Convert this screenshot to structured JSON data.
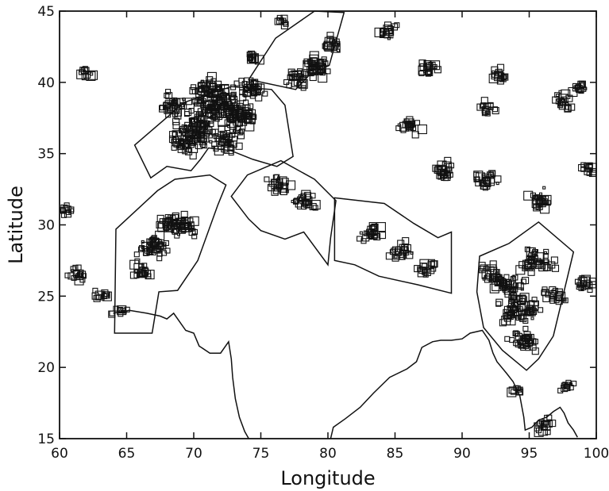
{
  "figure": {
    "xlabel": "Longitude",
    "ylabel": "Latitude",
    "xlim": [
      60,
      100
    ],
    "ylim": [
      15,
      45
    ],
    "x_ticks": [
      "60",
      "65",
      "70",
      "75",
      "80",
      "85",
      "90",
      "95",
      "100"
    ],
    "y_ticks": [
      "15",
      "20",
      "25",
      "30",
      "35",
      "40",
      "45"
    ],
    "ink_color": "#111111"
  },
  "map_data": {
    "coastline": [
      [
        [
          64.0,
          23.8
        ],
        [
          65.2,
          24.0
        ],
        [
          66.5,
          23.8
        ],
        [
          67.5,
          23.6
        ],
        [
          68.0,
          23.4
        ],
        [
          68.5,
          23.8
        ],
        [
          69.4,
          22.6
        ],
        [
          70.0,
          22.4
        ],
        [
          70.4,
          21.5
        ],
        [
          71.2,
          21.0
        ],
        [
          72.0,
          21.0
        ],
        [
          72.6,
          21.8
        ],
        [
          72.8,
          20.6
        ],
        [
          72.9,
          19.3
        ],
        [
          73.1,
          17.8
        ],
        [
          73.4,
          16.5
        ],
        [
          73.8,
          15.5
        ],
        [
          74.1,
          15.0
        ]
      ],
      [
        [
          80.2,
          15.0
        ],
        [
          80.4,
          15.8
        ],
        [
          81.3,
          16.4
        ],
        [
          82.4,
          17.2
        ],
        [
          83.4,
          18.2
        ],
        [
          84.6,
          19.3
        ],
        [
          85.9,
          19.9
        ],
        [
          86.6,
          20.4
        ],
        [
          87.0,
          21.4
        ],
        [
          87.8,
          21.8
        ],
        [
          88.4,
          21.9
        ],
        [
          89.2,
          21.9
        ],
        [
          90.0,
          22.0
        ],
        [
          90.6,
          22.4
        ],
        [
          91.5,
          22.6
        ],
        [
          92.0,
          21.9
        ],
        [
          92.3,
          21.0
        ],
        [
          92.6,
          20.4
        ],
        [
          93.3,
          19.6
        ],
        [
          93.8,
          19.0
        ],
        [
          94.3,
          18.0
        ],
        [
          94.6,
          16.5
        ],
        [
          94.7,
          15.6
        ],
        [
          95.2,
          15.8
        ],
        [
          95.7,
          16.3
        ],
        [
          96.3,
          16.5
        ],
        [
          96.8,
          16.9
        ],
        [
          97.3,
          17.2
        ],
        [
          97.6,
          16.8
        ],
        [
          97.9,
          16.1
        ],
        [
          98.3,
          15.6
        ],
        [
          98.6,
          15.1
        ]
      ]
    ],
    "zones": [
      [
        [
          64.2,
          29.7
        ],
        [
          67.3,
          32.4
        ],
        [
          68.6,
          33.2
        ],
        [
          71.2,
          33.5
        ],
        [
          72.4,
          32.8
        ],
        [
          71.8,
          31.4
        ],
        [
          70.3,
          27.5
        ],
        [
          68.8,
          25.4
        ],
        [
          67.4,
          25.3
        ],
        [
          66.9,
          22.4
        ],
        [
          64.1,
          22.4
        ]
      ],
      [
        [
          65.6,
          35.6
        ],
        [
          69.3,
          38.6
        ],
        [
          72.8,
          39.7
        ],
        [
          75.8,
          39.5
        ],
        [
          76.8,
          38.4
        ],
        [
          77.4,
          34.8
        ],
        [
          76.2,
          34.1
        ],
        [
          74.4,
          34.6
        ],
        [
          72.8,
          35.2
        ],
        [
          71.1,
          35.4
        ],
        [
          70.5,
          34.6
        ],
        [
          69.8,
          33.8
        ],
        [
          68.0,
          34.1
        ],
        [
          66.8,
          33.3
        ]
      ],
      [
        [
          74.1,
          40.2
        ],
        [
          76.1,
          43.1
        ],
        [
          79.0,
          45.0
        ],
        [
          81.2,
          44.9
        ],
        [
          80.1,
          41.2
        ],
        [
          78.6,
          40.5
        ],
        [
          77.6,
          39.5
        ]
      ],
      [
        [
          72.8,
          32.0
        ],
        [
          74.0,
          33.5
        ],
        [
          76.5,
          34.5
        ],
        [
          79.0,
          33.2
        ],
        [
          80.6,
          31.7
        ],
        [
          80.2,
          29.1
        ],
        [
          80.0,
          27.2
        ],
        [
          78.2,
          29.5
        ],
        [
          76.8,
          29.0
        ],
        [
          75.0,
          29.6
        ],
        [
          74.1,
          30.4
        ]
      ],
      [
        [
          80.5,
          31.9
        ],
        [
          84.2,
          31.5
        ],
        [
          86.4,
          30.1
        ],
        [
          88.2,
          29.1
        ],
        [
          89.2,
          29.5
        ],
        [
          89.2,
          25.2
        ],
        [
          86.7,
          25.8
        ],
        [
          83.8,
          26.4
        ],
        [
          82.0,
          27.2
        ],
        [
          80.5,
          27.5
        ]
      ],
      [
        [
          91.3,
          27.8
        ],
        [
          93.5,
          28.7
        ],
        [
          95.7,
          30.2
        ],
        [
          98.3,
          28.1
        ],
        [
          96.8,
          22.2
        ],
        [
          95.7,
          20.6
        ],
        [
          94.8,
          19.8
        ],
        [
          93.0,
          21.2
        ],
        [
          91.6,
          22.8
        ],
        [
          91.1,
          25.3
        ]
      ]
    ],
    "events": [
      [
        72.0,
        38.2,
        2.4
      ],
      [
        70.3,
        36.7,
        2.0
      ],
      [
        73.5,
        37.6,
        1.8
      ],
      [
        71.2,
        39.5,
        1.7
      ],
      [
        69.4,
        35.8,
        1.6
      ],
      [
        74.1,
        39.6,
        1.5
      ],
      [
        72.5,
        35.9,
        1.5
      ],
      [
        68.6,
        38.4,
        1.4
      ],
      [
        66.9,
        28.5,
        1.6
      ],
      [
        69.2,
        29.9,
        1.5
      ],
      [
        68.1,
        30.2,
        1.2
      ],
      [
        65.9,
        26.8,
        1.1
      ],
      [
        79.2,
        41.2,
        1.6
      ],
      [
        77.8,
        40.2,
        1.2
      ],
      [
        80.3,
        42.6,
        1.0
      ],
      [
        76.3,
        33.0,
        1.2
      ],
      [
        78.2,
        31.6,
        1.2
      ],
      [
        83.2,
        29.4,
        1.2
      ],
      [
        85.6,
        28.2,
        1.2
      ],
      [
        87.4,
        27.0,
        1.0
      ],
      [
        94.3,
        24.2,
        2.0
      ],
      [
        93.2,
        25.8,
        1.6
      ],
      [
        95.5,
        27.5,
        1.6
      ],
      [
        94.6,
        21.8,
        1.5
      ],
      [
        92.1,
        26.6,
        1.1
      ],
      [
        96.8,
        25.2,
        1.1
      ],
      [
        91.8,
        33.2,
        1.2
      ],
      [
        95.8,
        31.8,
        1.2
      ],
      [
        88.6,
        33.8,
        1.2
      ],
      [
        86.2,
        37.0,
        1.1
      ],
      [
        87.4,
        41.0,
        1.1
      ],
      [
        84.5,
        43.6,
        1.0
      ],
      [
        97.5,
        38.7,
        1.1
      ],
      [
        98.8,
        39.5,
        0.9
      ],
      [
        99.4,
        33.9,
        0.9
      ],
      [
        99.2,
        25.9,
        1.0
      ],
      [
        61.4,
        26.6,
        1.0
      ],
      [
        63.2,
        25.1,
        0.8
      ],
      [
        64.4,
        24.0,
        0.8
      ],
      [
        62.0,
        40.6,
        0.8
      ],
      [
        60.5,
        31.0,
        0.8
      ],
      [
        92.7,
        40.5,
        0.9
      ],
      [
        92.0,
        38.2,
        0.9
      ],
      [
        96.1,
        15.9,
        1.0
      ],
      [
        97.8,
        18.7,
        0.8
      ],
      [
        94.1,
        18.3,
        0.7
      ],
      [
        76.6,
        44.3,
        0.7
      ],
      [
        74.3,
        41.8,
        0.8
      ]
    ]
  }
}
